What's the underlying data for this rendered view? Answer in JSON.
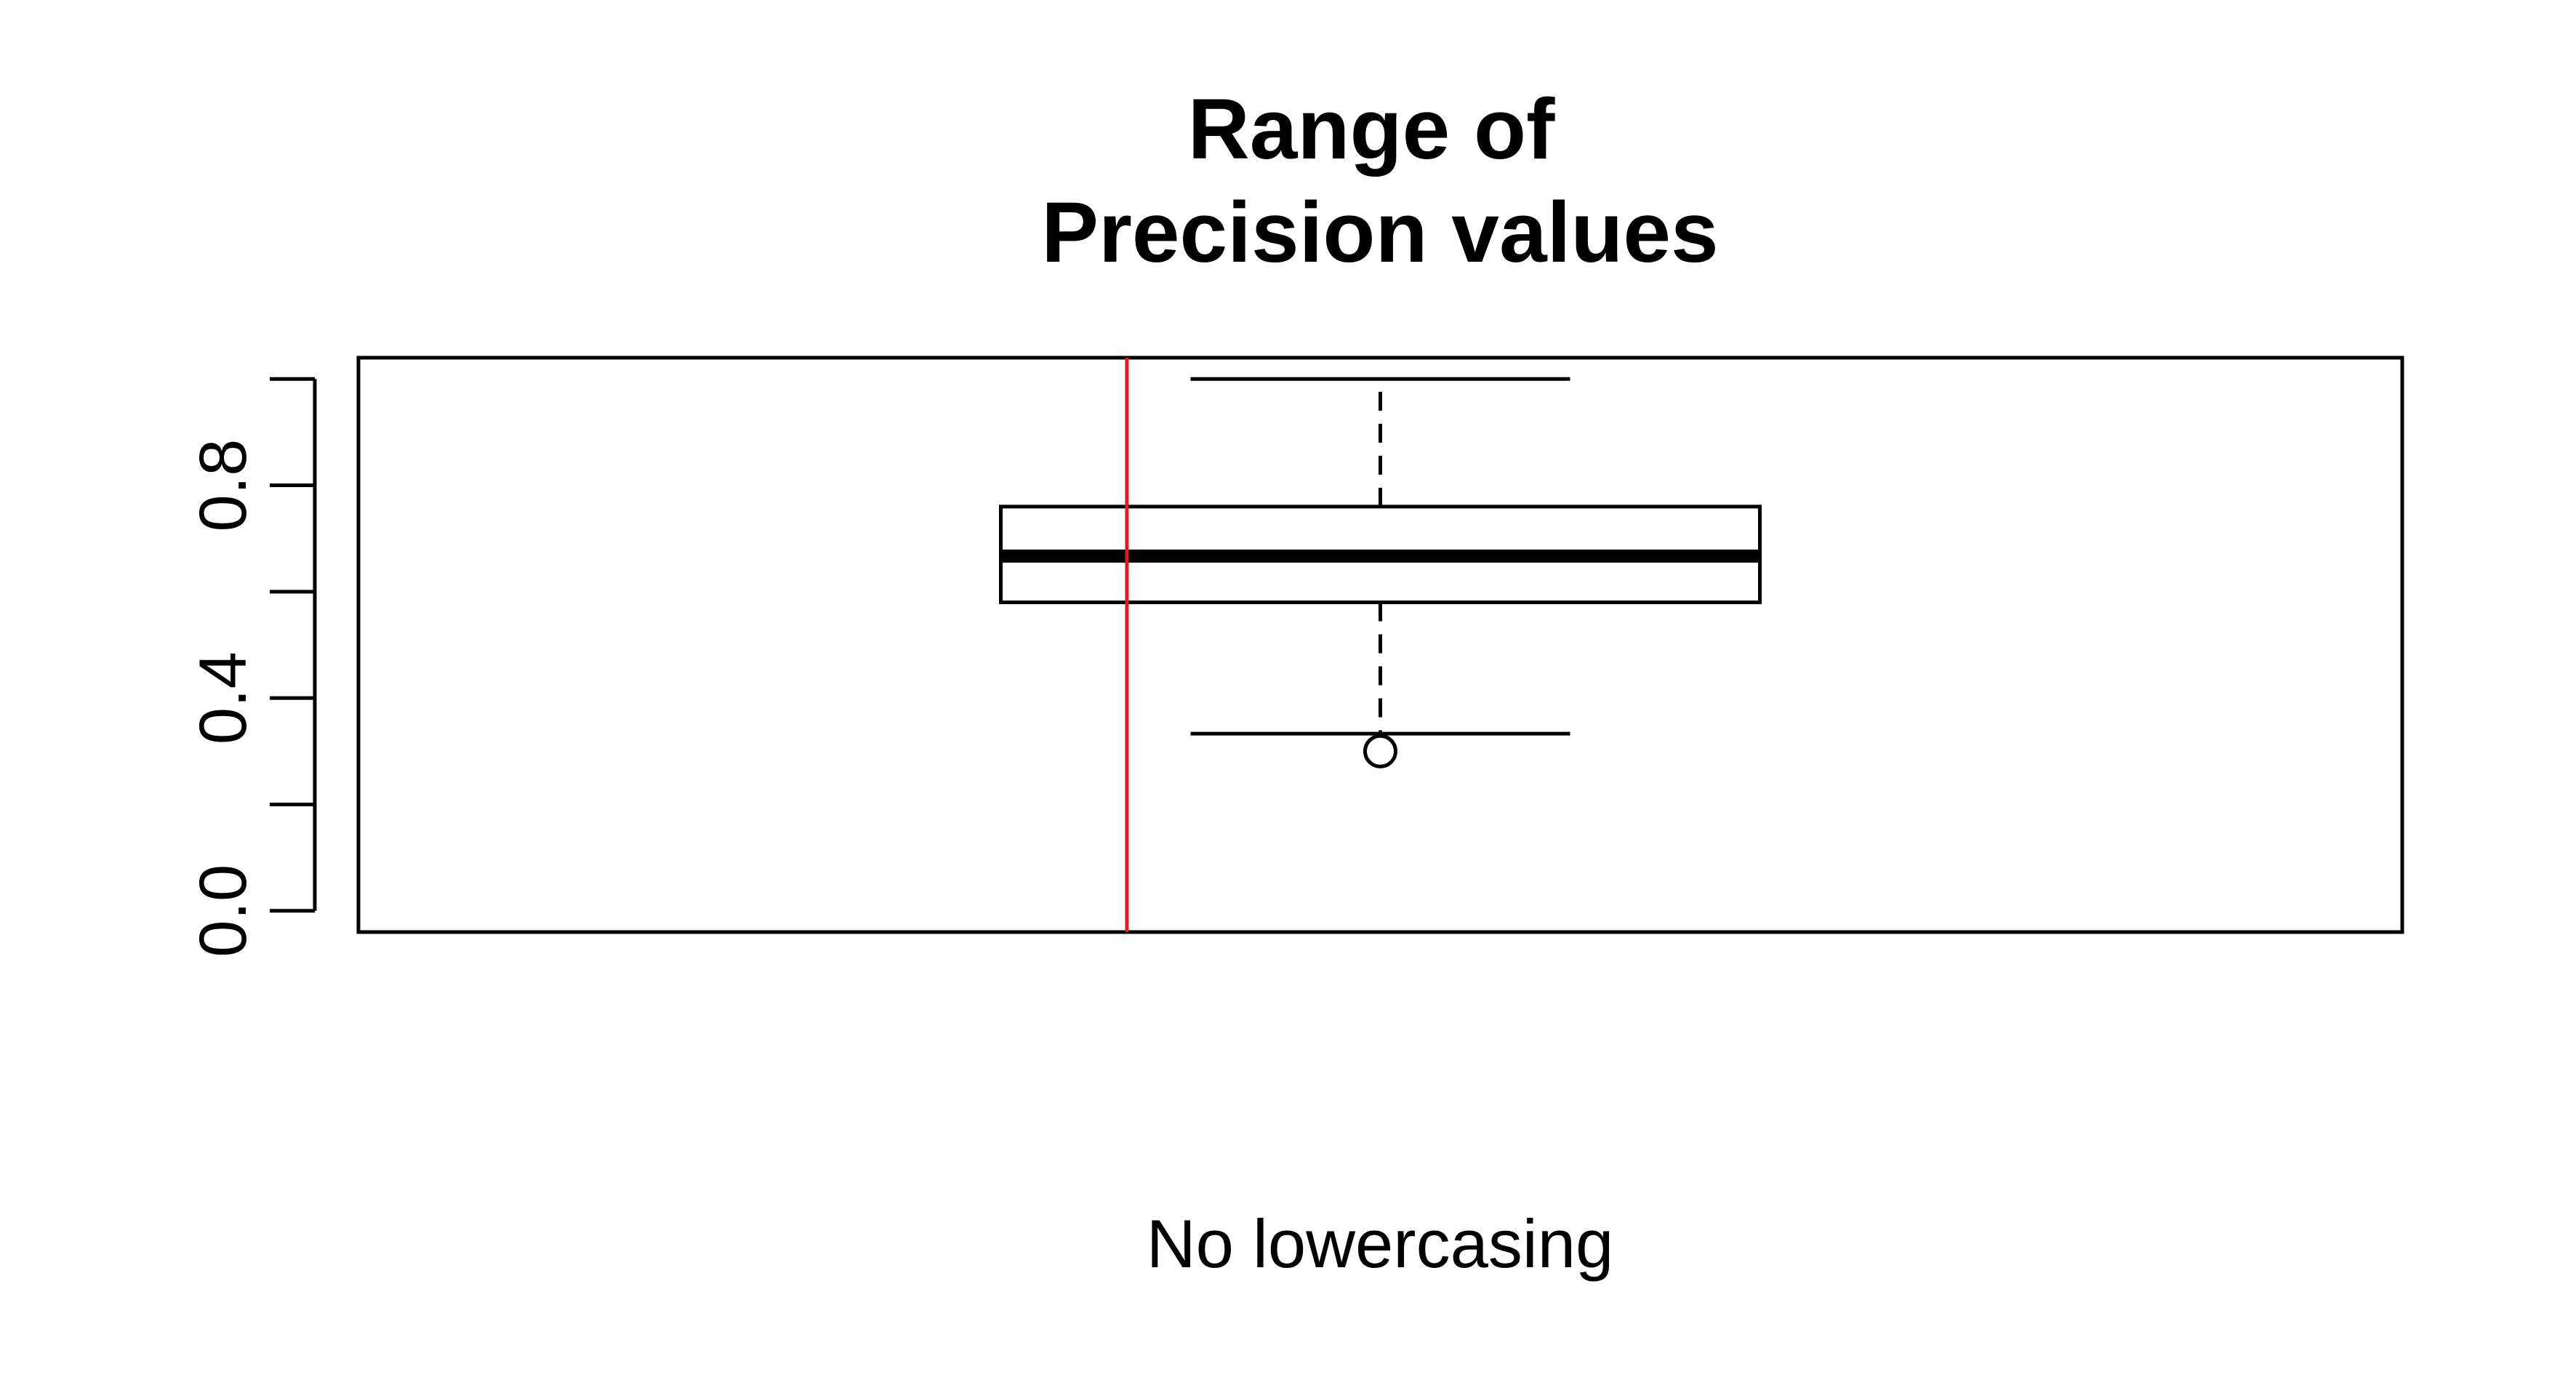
{
  "chart_data": {
    "type": "boxplot",
    "title_lines": [
      "Range of",
      "Precision values"
    ],
    "xlabel": "No lowercasing",
    "ylabel": "",
    "ylim": [
      -0.04,
      1.04
    ],
    "y_ticks": [
      0.0,
      0.2,
      0.4,
      0.6,
      0.8,
      1.0
    ],
    "y_tick_labels": [
      "0.0",
      "",
      "0.4",
      "",
      "0.8",
      ""
    ],
    "box": {
      "min": 0.333,
      "q1": 0.58,
      "median": 0.667,
      "q3": 0.76,
      "max": 1.0,
      "outliers": [
        0.3
      ]
    },
    "reference_line": {
      "x_fraction": 0.376,
      "orientation": "vertical"
    },
    "grid": false,
    "legend": "none",
    "colors": {
      "box_stroke": "#000000",
      "reference_line": "#e31a1c",
      "background": "#ffffff"
    }
  }
}
